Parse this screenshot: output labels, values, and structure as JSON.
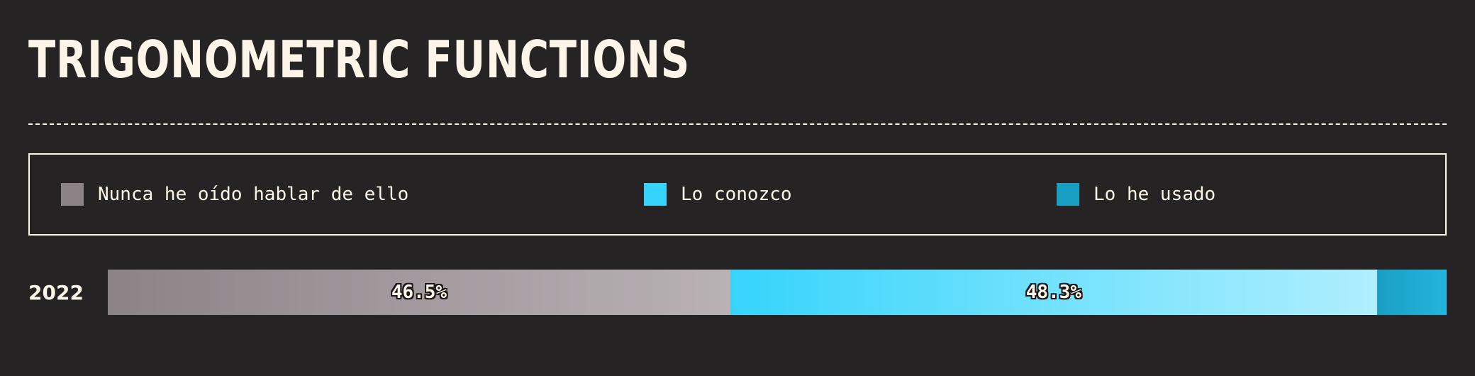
{
  "chart_data": {
    "type": "bar",
    "orientation": "horizontal-stacked",
    "title": "Trigonometric functions",
    "categories": [
      "2022"
    ],
    "series": [
      {
        "name": "Nunca he oído hablar de ello",
        "values": [
          46.5
        ],
        "label": "46.5%",
        "color": "#8c8387"
      },
      {
        "name": "Lo conozco",
        "values": [
          48.3
        ],
        "label": "48.3%",
        "color": "#36d4fb"
      },
      {
        "name": "Lo he usado",
        "values": [
          5.2
        ],
        "label": "",
        "color": "#1a9fc4"
      }
    ],
    "xlim": [
      0,
      100
    ],
    "legend_position": "top",
    "grid": false
  },
  "colors": {
    "background": "#262325",
    "text": "#fdf6e8"
  }
}
